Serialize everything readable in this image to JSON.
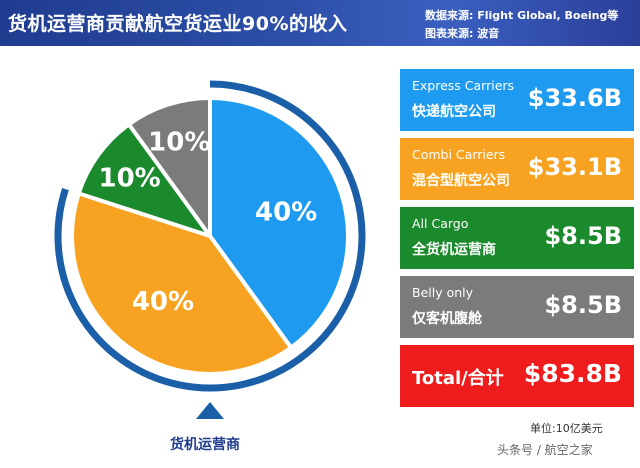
{
  "header": {
    "title": "货机运营商贡献航空货运业90%的收入",
    "source_data": "数据来源: Flight Global, Boeing等",
    "source_chart": "图表来源: 波音"
  },
  "chart_data": {
    "type": "pie",
    "slices": [
      {
        "label": "Express Carriers",
        "cn": "快递航空公司",
        "value": 33.6,
        "display": "$33.6B",
        "percent": 40,
        "percent_label": "40%",
        "color": "#1e9bf0"
      },
      {
        "label": "Combi Carriers",
        "cn": "混合型航空公司",
        "value": 33.1,
        "display": "$33.1B",
        "percent": 40,
        "percent_label": "40%",
        "color": "#f7a321"
      },
      {
        "label": "All Cargo",
        "cn": "全货机运营商",
        "value": 8.5,
        "display": "$8.5B",
        "percent": 10,
        "percent_label": "10%",
        "color": "#1b8a2c"
      },
      {
        "label": "Belly only",
        "cn": "仅客机腹舱",
        "value": 8.5,
        "display": "$8.5B",
        "percent": 10,
        "percent_label": "10%",
        "color": "#7b7b7b"
      }
    ],
    "total": {
      "label": "Total/合计",
      "value": 83.8,
      "display": "$83.8B",
      "color": "#ee1c1c"
    },
    "unit": "单位:10亿美元",
    "freighter_caption": "货机运营商",
    "arc_color": "#1a5fa8"
  },
  "watermark": "头条号 / 航空之家"
}
